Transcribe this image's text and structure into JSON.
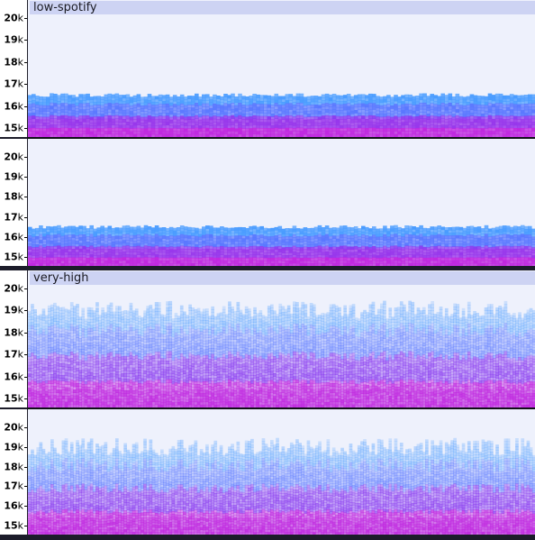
{
  "tracks": [
    {
      "name": "low-spotify",
      "channels": [
        {
          "ticks": [
            {
              "num": "20",
              "unit": "k"
            },
            {
              "num": "19",
              "unit": "k"
            },
            {
              "num": "18",
              "unit": "k"
            },
            {
              "num": "17",
              "unit": "k"
            },
            {
              "num": "16",
              "unit": "k"
            },
            {
              "num": "15",
              "unit": "k"
            }
          ]
        },
        {
          "ticks": [
            {
              "num": "20",
              "unit": "k"
            },
            {
              "num": "19",
              "unit": "k"
            },
            {
              "num": "18",
              "unit": "k"
            },
            {
              "num": "17",
              "unit": "k"
            },
            {
              "num": "16",
              "unit": "k"
            },
            {
              "num": "15",
              "unit": "k"
            }
          ]
        }
      ],
      "cutoff_khz": 16.5
    },
    {
      "name": "very-high",
      "channels": [
        {
          "ticks": [
            {
              "num": "20",
              "unit": "k"
            },
            {
              "num": "19",
              "unit": "k"
            },
            {
              "num": "18",
              "unit": "k"
            },
            {
              "num": "17",
              "unit": "k"
            },
            {
              "num": "16",
              "unit": "k"
            },
            {
              "num": "15",
              "unit": "k"
            }
          ]
        },
        {
          "ticks": [
            {
              "num": "20",
              "unit": "k"
            },
            {
              "num": "19",
              "unit": "k"
            },
            {
              "num": "18",
              "unit": "k"
            },
            {
              "num": "17",
              "unit": "k"
            },
            {
              "num": "16",
              "unit": "k"
            },
            {
              "num": "15",
              "unit": "k"
            }
          ]
        }
      ],
      "cutoff_khz": 19.2
    }
  ],
  "colors": {
    "background": "#eef1fc",
    "low": "#8a3cf0",
    "mid": "#5a78ff",
    "high": "#4a9cff",
    "bass": "#c028e0",
    "label_bar": "#cdd3f3"
  }
}
